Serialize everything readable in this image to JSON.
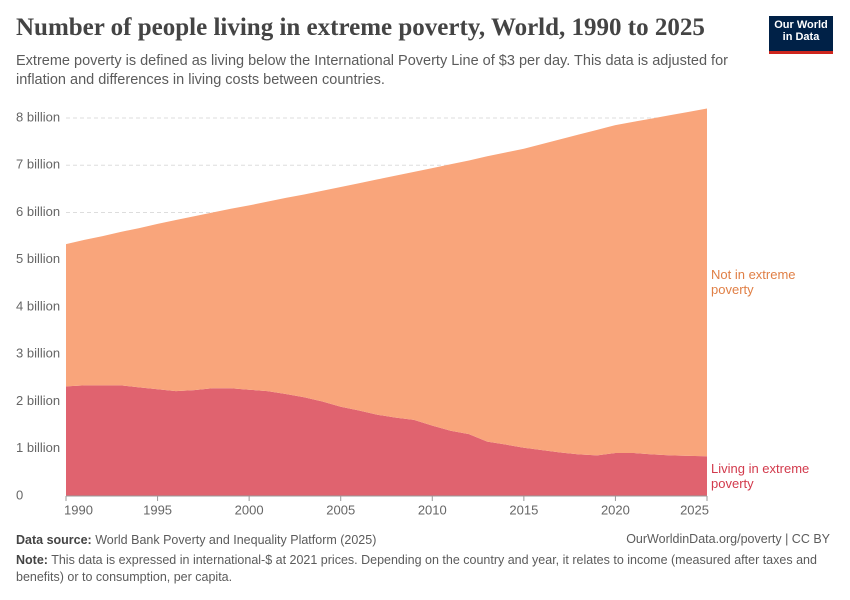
{
  "chart_data": {
    "type": "area",
    "stacked": true,
    "title": "Number of people living in extreme poverty, World, 1990 to 2025",
    "subtitle": "Extreme poverty is defined as living below the International Poverty Line of $3 per day. This data is adjusted for inflation and differences in living costs between countries.",
    "logo": "Our World in Data",
    "x": [
      1990,
      1991,
      1992,
      1993,
      1994,
      1995,
      1996,
      1997,
      1998,
      1999,
      2000,
      2001,
      2002,
      2003,
      2004,
      2005,
      2006,
      2007,
      2008,
      2009,
      2010,
      2011,
      2012,
      2013,
      2014,
      2015,
      2016,
      2017,
      2018,
      2019,
      2020,
      2021,
      2022,
      2023,
      2024,
      2025
    ],
    "series": [
      {
        "name": "Living in extreme poverty",
        "color": "#e0636f",
        "label_color": "#d23a4c",
        "values": [
          2.32,
          2.34,
          2.34,
          2.34,
          2.3,
          2.26,
          2.22,
          2.24,
          2.28,
          2.28,
          2.25,
          2.22,
          2.16,
          2.09,
          2.0,
          1.89,
          1.81,
          1.72,
          1.66,
          1.61,
          1.49,
          1.38,
          1.31,
          1.15,
          1.09,
          1.02,
          0.97,
          0.92,
          0.88,
          0.86,
          0.91,
          0.91,
          0.88,
          0.86,
          0.85,
          0.84
        ]
      },
      {
        "name": "Not in extreme poverty",
        "color": "#f9a57b",
        "label_color": "#e07f45",
        "values": [
          3.01,
          3.08,
          3.16,
          3.25,
          3.37,
          3.5,
          3.62,
          3.68,
          3.72,
          3.8,
          3.9,
          4.01,
          4.15,
          4.29,
          4.46,
          4.65,
          4.81,
          4.98,
          5.12,
          5.25,
          5.45,
          5.64,
          5.79,
          6.04,
          6.18,
          6.33,
          6.48,
          6.63,
          6.77,
          6.89,
          6.94,
          7.01,
          7.11,
          7.2,
          7.28,
          7.36
        ]
      }
    ],
    "xlim": [
      1990,
      2025
    ],
    "xticks": [
      1990,
      1995,
      2000,
      2005,
      2010,
      2015,
      2020,
      2025
    ],
    "ylim": [
      0,
      8.2
    ],
    "yticks": [
      0,
      {
        "value": 1,
        "label": "1 billion"
      },
      {
        "value": 2,
        "label": "2 billion"
      },
      {
        "value": 3,
        "label": "3 billion"
      },
      {
        "value": 4,
        "label": "4 billion"
      },
      {
        "value": 5,
        "label": "5 billion"
      },
      {
        "value": 6,
        "label": "6 billion"
      },
      {
        "value": 7,
        "label": "7 billion"
      },
      {
        "value": 8,
        "label": "8 billion"
      }
    ],
    "grid": true,
    "footer": {
      "source_label": "Data source:",
      "source": "World Bank Poverty and Inequality Platform (2025)",
      "url": "OurWorldinData.org/poverty | CC BY",
      "note_label": "Note:",
      "note": "This data is expressed in international-$ at 2021 prices. Depending on the country and year, it relates to income (measured after taxes and benefits) or to consumption, per capita."
    }
  }
}
